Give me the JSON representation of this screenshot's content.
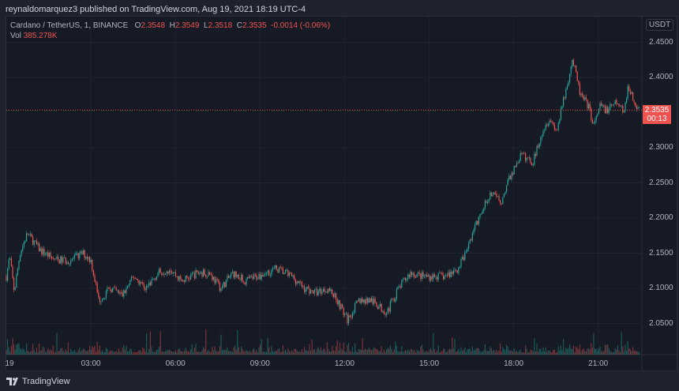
{
  "header": {
    "published": "reynaldomarquez3 published on TradingView.com, Aug 19, 2021 18:19 UTC-4"
  },
  "legend": {
    "symbol": "Cardano / TetherUS, 1, BINANCE",
    "o_label": "O",
    "o": "2.3548",
    "h_label": "H",
    "h": "2.3549",
    "l_label": "L",
    "l": "2.3518",
    "c_label": "C",
    "c": "2.3535",
    "change": "-0.0014 (-0.06%)",
    "vol_label": "Vol",
    "vol": "385.278K"
  },
  "footer": {
    "logo_text": "TradingView"
  },
  "colors": {
    "up": "#26a69a",
    "down": "#ef5350",
    "background": "#161a25",
    "last_price": "#ef5350"
  },
  "chart_data": {
    "type": "candlestick",
    "currency": "USDT",
    "interval": "1",
    "last_price": "2.3535",
    "countdown": "00:13",
    "ylim": [
      2.005,
      2.49
    ],
    "y_ticks": [
      "2.4500",
      "2.4000",
      "2.3500",
      "2.3000",
      "2.2500",
      "2.2000",
      "2.1500",
      "2.1000",
      "2.0500"
    ],
    "x_ticks": [
      "19",
      "03:00",
      "06:00",
      "09:00",
      "12:00",
      "15:00",
      "18:00",
      "21:00"
    ],
    "grid": true,
    "approx_price_path": [
      [
        "00:00",
        2.117
      ],
      [
        "00:07",
        2.145
      ],
      [
        "00:17",
        2.095
      ],
      [
        "00:29",
        2.15
      ],
      [
        "00:45",
        2.178
      ],
      [
        "01:11",
        2.155
      ],
      [
        "01:44",
        2.14
      ],
      [
        "02:18",
        2.14
      ],
      [
        "02:43",
        2.15
      ],
      [
        "03:00",
        2.14
      ],
      [
        "03:17",
        2.083
      ],
      [
        "03:42",
        2.1
      ],
      [
        "04:07",
        2.09
      ],
      [
        "04:32",
        2.117
      ],
      [
        "04:57",
        2.1
      ],
      [
        "05:23",
        2.122
      ],
      [
        "05:48",
        2.128
      ],
      [
        "06:13",
        2.11
      ],
      [
        "06:47",
        2.122
      ],
      [
        "07:12",
        2.122
      ],
      [
        "07:37",
        2.1
      ],
      [
        "08:02",
        2.122
      ],
      [
        "08:28",
        2.11
      ],
      [
        "09:01",
        2.119
      ],
      [
        "09:35",
        2.128
      ],
      [
        "10:08",
        2.117
      ],
      [
        "10:34",
        2.1
      ],
      [
        "10:59",
        2.094
      ],
      [
        "11:24",
        2.1
      ],
      [
        "11:41",
        2.088
      ],
      [
        "12:06",
        2.055
      ],
      [
        "12:31",
        2.083
      ],
      [
        "12:56",
        2.083
      ],
      [
        "13:30",
        2.066
      ],
      [
        "13:55",
        2.1
      ],
      [
        "14:20",
        2.122
      ],
      [
        "14:46",
        2.117
      ],
      [
        "15:11",
        2.117
      ],
      [
        "15:36",
        2.117
      ],
      [
        "16:01",
        2.128
      ],
      [
        "16:18",
        2.15
      ],
      [
        "16:35",
        2.184
      ],
      [
        "16:52",
        2.207
      ],
      [
        "17:09",
        2.235
      ],
      [
        "17:34",
        2.224
      ],
      [
        "17:51",
        2.257
      ],
      [
        "18:16",
        2.29
      ],
      [
        "18:41",
        2.279
      ],
      [
        "18:58",
        2.319
      ],
      [
        "19:15",
        2.342
      ],
      [
        "19:32",
        2.325
      ],
      [
        "19:49",
        2.375
      ],
      [
        "20:05",
        2.426
      ],
      [
        "20:22",
        2.375
      ],
      [
        "20:39",
        2.359
      ],
      [
        "20:51",
        2.331
      ],
      [
        "21:04",
        2.359
      ],
      [
        "21:21",
        2.353
      ],
      [
        "21:38",
        2.364
      ],
      [
        "21:55",
        2.353
      ],
      [
        "22:03",
        2.387
      ],
      [
        "22:20",
        2.359
      ],
      [
        "22:29",
        2.3535
      ]
    ]
  }
}
